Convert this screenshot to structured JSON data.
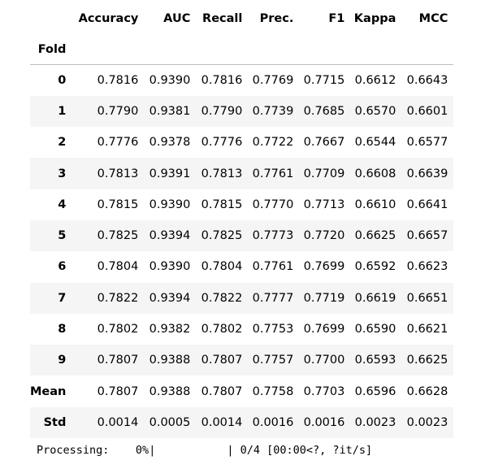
{
  "table": {
    "columns": [
      "Accuracy",
      "AUC",
      "Recall",
      "Prec.",
      "F1",
      "Kappa",
      "MCC"
    ],
    "index_name": "Fold",
    "rows": [
      {
        "label": "0",
        "values": [
          "0.7816",
          "0.9390",
          "0.7816",
          "0.7769",
          "0.7715",
          "0.6612",
          "0.6643"
        ]
      },
      {
        "label": "1",
        "values": [
          "0.7790",
          "0.9381",
          "0.7790",
          "0.7739",
          "0.7685",
          "0.6570",
          "0.6601"
        ]
      },
      {
        "label": "2",
        "values": [
          "0.7776",
          "0.9378",
          "0.7776",
          "0.7722",
          "0.7667",
          "0.6544",
          "0.6577"
        ]
      },
      {
        "label": "3",
        "values": [
          "0.7813",
          "0.9391",
          "0.7813",
          "0.7761",
          "0.7709",
          "0.6608",
          "0.6639"
        ]
      },
      {
        "label": "4",
        "values": [
          "0.7815",
          "0.9390",
          "0.7815",
          "0.7770",
          "0.7713",
          "0.6610",
          "0.6641"
        ]
      },
      {
        "label": "5",
        "values": [
          "0.7825",
          "0.9394",
          "0.7825",
          "0.7773",
          "0.7720",
          "0.6625",
          "0.6657"
        ]
      },
      {
        "label": "6",
        "values": [
          "0.7804",
          "0.9390",
          "0.7804",
          "0.7761",
          "0.7699",
          "0.6592",
          "0.6623"
        ]
      },
      {
        "label": "7",
        "values": [
          "0.7822",
          "0.9394",
          "0.7822",
          "0.7777",
          "0.7719",
          "0.6619",
          "0.6651"
        ]
      },
      {
        "label": "8",
        "values": [
          "0.7802",
          "0.9382",
          "0.7802",
          "0.7753",
          "0.7699",
          "0.6590",
          "0.6621"
        ]
      },
      {
        "label": "9",
        "values": [
          "0.7807",
          "0.9388",
          "0.7807",
          "0.7757",
          "0.7700",
          "0.6593",
          "0.6625"
        ]
      },
      {
        "label": "Mean",
        "values": [
          "0.7807",
          "0.9388",
          "0.7807",
          "0.7758",
          "0.7703",
          "0.6596",
          "0.6628"
        ]
      },
      {
        "label": "Std",
        "values": [
          "0.0014",
          "0.0005",
          "0.0014",
          "0.0016",
          "0.0016",
          "0.0023",
          "0.0023"
        ]
      }
    ]
  },
  "progress": {
    "label": "Processing:",
    "percent_text": "0%",
    "fraction": 0,
    "left_edge": "|",
    "right_edge": "|",
    "status": "0/4 [00:00<?, ?it/s]"
  }
}
